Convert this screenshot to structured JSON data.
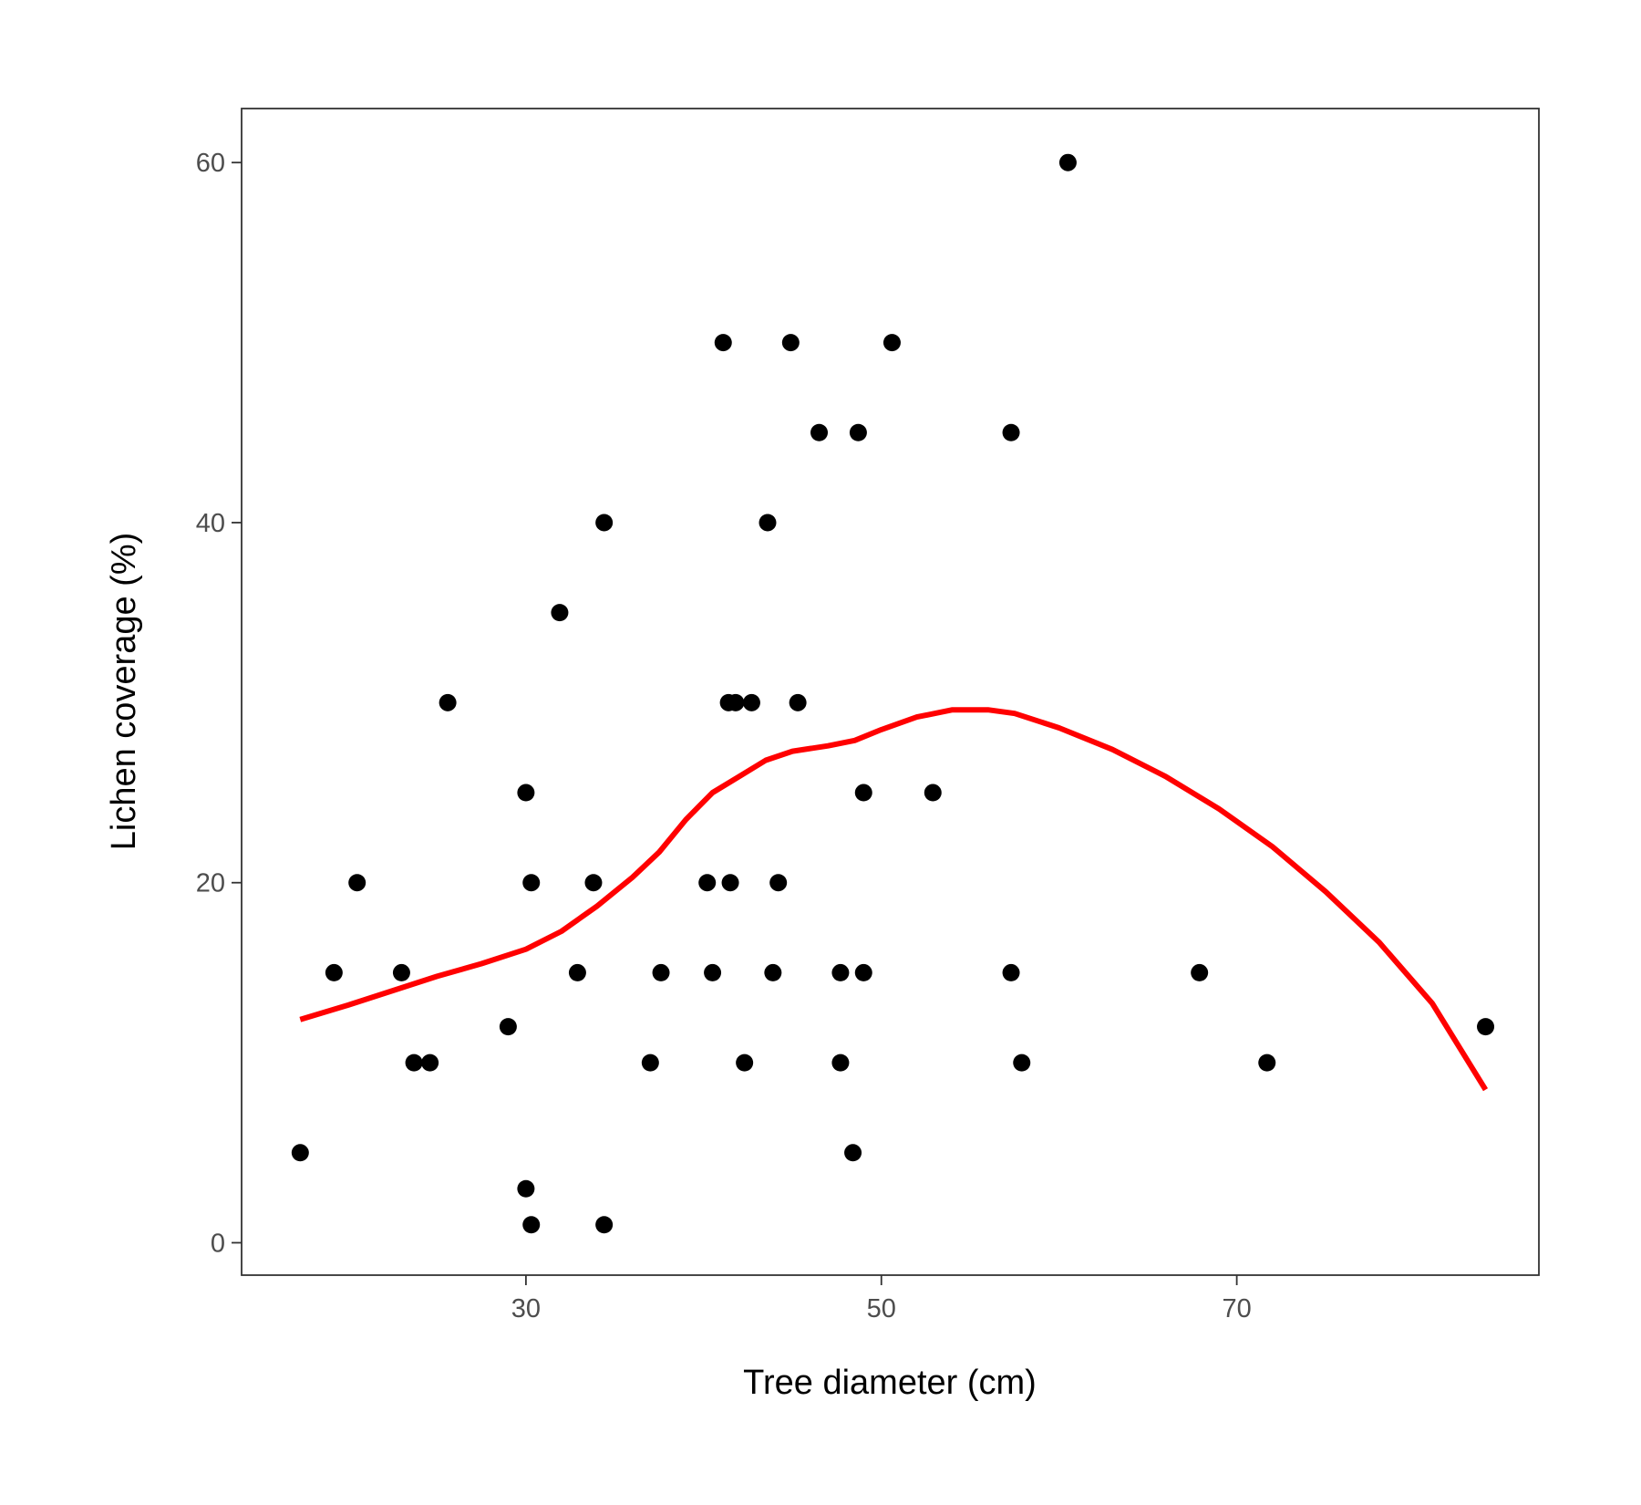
{
  "chart_data": {
    "type": "scatter",
    "xlabel": "Tree diameter (cm)",
    "ylabel": "Lichen coverage (%)",
    "xlim": [
      14,
      87
    ],
    "ylim": [
      -1.8,
      63
    ],
    "x_ticks": [
      30,
      50,
      70
    ],
    "y_ticks": [
      0,
      20,
      40,
      60
    ],
    "grid": false,
    "point_color": "#000000",
    "smooth_color": "#ff0000",
    "points": [
      {
        "x": 17.3,
        "y": 5
      },
      {
        "x": 19.2,
        "y": 15
      },
      {
        "x": 20.5,
        "y": 20
      },
      {
        "x": 23.0,
        "y": 15
      },
      {
        "x": 23.7,
        "y": 10
      },
      {
        "x": 24.6,
        "y": 10
      },
      {
        "x": 25.6,
        "y": 30
      },
      {
        "x": 29.0,
        "y": 12
      },
      {
        "x": 30.0,
        "y": 25
      },
      {
        "x": 30.0,
        "y": 3
      },
      {
        "x": 30.3,
        "y": 20
      },
      {
        "x": 30.3,
        "y": 1
      },
      {
        "x": 31.9,
        "y": 35
      },
      {
        "x": 32.9,
        "y": 15
      },
      {
        "x": 33.8,
        "y": 20
      },
      {
        "x": 34.4,
        "y": 40
      },
      {
        "x": 34.4,
        "y": 1
      },
      {
        "x": 37.0,
        "y": 10
      },
      {
        "x": 37.6,
        "y": 15
      },
      {
        "x": 40.2,
        "y": 20
      },
      {
        "x": 40.5,
        "y": 15
      },
      {
        "x": 41.1,
        "y": 50
      },
      {
        "x": 41.4,
        "y": 30
      },
      {
        "x": 41.5,
        "y": 20
      },
      {
        "x": 41.8,
        "y": 30
      },
      {
        "x": 42.3,
        "y": 10
      },
      {
        "x": 42.7,
        "y": 30
      },
      {
        "x": 43.6,
        "y": 40
      },
      {
        "x": 43.9,
        "y": 15
      },
      {
        "x": 44.2,
        "y": 20
      },
      {
        "x": 44.9,
        "y": 50
      },
      {
        "x": 45.3,
        "y": 30
      },
      {
        "x": 46.5,
        "y": 45
      },
      {
        "x": 47.7,
        "y": 15
      },
      {
        "x": 47.7,
        "y": 10
      },
      {
        "x": 48.4,
        "y": 5
      },
      {
        "x": 48.7,
        "y": 45
      },
      {
        "x": 49.0,
        "y": 25
      },
      {
        "x": 49.0,
        "y": 15
      },
      {
        "x": 50.6,
        "y": 50
      },
      {
        "x": 52.9,
        "y": 25
      },
      {
        "x": 57.3,
        "y": 45
      },
      {
        "x": 57.3,
        "y": 15
      },
      {
        "x": 57.9,
        "y": 10
      },
      {
        "x": 60.5,
        "y": 60
      },
      {
        "x": 67.9,
        "y": 15
      },
      {
        "x": 71.7,
        "y": 10
      },
      {
        "x": 84.0,
        "y": 12
      }
    ],
    "smooth_line": [
      {
        "x": 17.3,
        "y": 12.4
      },
      {
        "x": 20.0,
        "y": 13.2
      },
      {
        "x": 22.5,
        "y": 14.0
      },
      {
        "x": 25.0,
        "y": 14.8
      },
      {
        "x": 27.5,
        "y": 15.5
      },
      {
        "x": 30.0,
        "y": 16.3
      },
      {
        "x": 32.0,
        "y": 17.3
      },
      {
        "x": 34.0,
        "y": 18.7
      },
      {
        "x": 36.0,
        "y": 20.3
      },
      {
        "x": 37.5,
        "y": 21.7
      },
      {
        "x": 39.0,
        "y": 23.5
      },
      {
        "x": 40.5,
        "y": 25.0
      },
      {
        "x": 42.0,
        "y": 25.9
      },
      {
        "x": 43.5,
        "y": 26.8
      },
      {
        "x": 45.0,
        "y": 27.3
      },
      {
        "x": 47.0,
        "y": 27.6
      },
      {
        "x": 48.5,
        "y": 27.9
      },
      {
        "x": 50.0,
        "y": 28.5
      },
      {
        "x": 52.0,
        "y": 29.2
      },
      {
        "x": 54.0,
        "y": 29.6
      },
      {
        "x": 56.0,
        "y": 29.6
      },
      {
        "x": 57.5,
        "y": 29.4
      },
      {
        "x": 60.0,
        "y": 28.6
      },
      {
        "x": 63.0,
        "y": 27.4
      },
      {
        "x": 66.0,
        "y": 25.9
      },
      {
        "x": 69.0,
        "y": 24.1
      },
      {
        "x": 72.0,
        "y": 22.0
      },
      {
        "x": 75.0,
        "y": 19.5
      },
      {
        "x": 78.0,
        "y": 16.7
      },
      {
        "x": 81.0,
        "y": 13.3
      },
      {
        "x": 84.0,
        "y": 8.5
      }
    ]
  }
}
